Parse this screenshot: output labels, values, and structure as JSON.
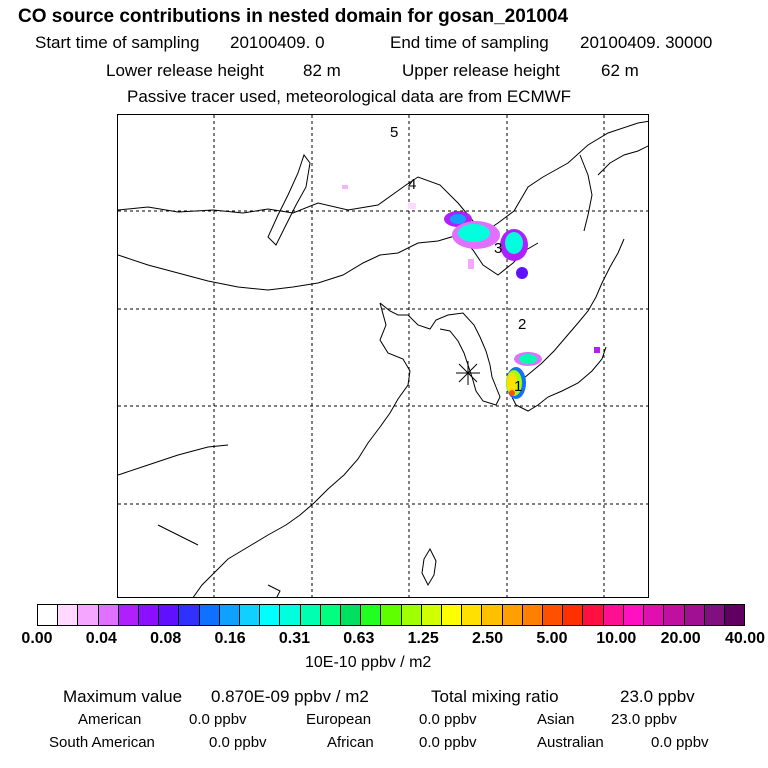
{
  "header": {
    "title": "CO  source contributions in nested domain for gosan_201004",
    "start_label": "Start time of sampling",
    "start_value": "20100409.    0",
    "end_label": "End time of sampling",
    "end_value": "20100409. 30000",
    "lower_label": "Lower release height",
    "lower_value": "82 m",
    "upper_label": "Upper release height",
    "upper_value": "62 m",
    "tracer_note": "Passive tracer used, meteorological data are from ECMWF"
  },
  "chart_data": {
    "type": "heatmap",
    "map": "East Asia nested domain",
    "receptor": "gosan (marked with asterisk)",
    "trajectory_labels": [
      "1",
      "2",
      "3",
      "4",
      "5"
    ],
    "colorbar": {
      "ticks": [
        "0.00",
        "0.04",
        "0.08",
        "0.16",
        "0.31",
        "0.63",
        "1.25",
        "2.50",
        "5.00",
        "10.00",
        "20.00",
        "40.00"
      ],
      "units": "10E-10 ppbv / m2",
      "colors": [
        "#ffffff",
        "#ffd9ff",
        "#f5a6ff",
        "#e070ff",
        "#b020ff",
        "#8c10ff",
        "#6010ff",
        "#3030ff",
        "#1070ff",
        "#10a0ff",
        "#10d0ff",
        "#00ffff",
        "#00ffdd",
        "#00ffb0",
        "#00ff80",
        "#00e060",
        "#20ff20",
        "#60ff00",
        "#a0ff00",
        "#d0ff00",
        "#ffff00",
        "#ffe000",
        "#ffc000",
        "#ffa000",
        "#ff8000",
        "#ff5000",
        "#ff3000",
        "#ff1040",
        "#ff1090",
        "#ff10c0",
        "#e010b0",
        "#c010a0",
        "#a01090",
        "#801080",
        "#600060"
      ]
    }
  },
  "stats": {
    "max_label": "Maximum value",
    "max_value": "0.870E-09 ppbv / m2",
    "total_label": "Total mixing ratio",
    "total_value": "23.0 ppbv"
  },
  "regions": [
    {
      "name": "American",
      "value": "0.0 ppbv"
    },
    {
      "name": "European",
      "value": "0.0 ppbv"
    },
    {
      "name": "Asian",
      "value": "23.0 ppbv"
    },
    {
      "name": "South American",
      "value": "0.0 ppbv"
    },
    {
      "name": "African",
      "value": "0.0 ppbv"
    },
    {
      "name": "Australian",
      "value": "0.0 ppbv"
    }
  ]
}
